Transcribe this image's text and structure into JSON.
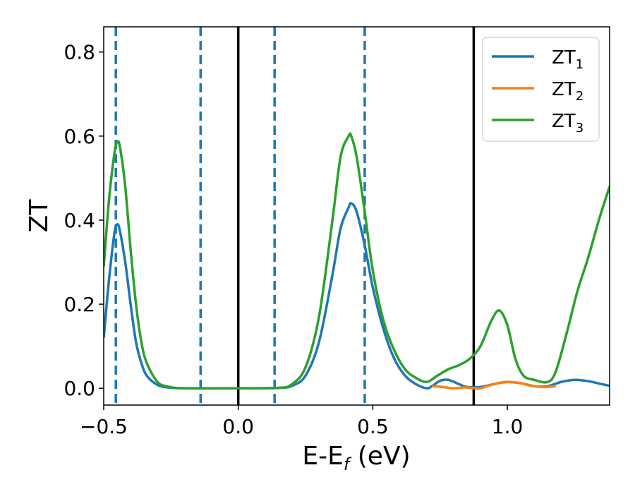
{
  "chart_data": {
    "type": "line",
    "xlabel": "E-E",
    "xlabel_sub": "f",
    "xlabel_unit": " (eV)",
    "ylabel": "ZT",
    "xlim": [
      -0.5,
      1.38
    ],
    "ylim": [
      -0.04,
      0.86
    ],
    "xticks": [
      -0.5,
      0.0,
      0.5,
      1.0
    ],
    "xtick_labels": [
      "−0.5",
      "0.0",
      "0.5",
      "1.0"
    ],
    "yticks": [
      0.0,
      0.2,
      0.4,
      0.6,
      0.8
    ],
    "ytick_labels": [
      "0.0",
      "0.2",
      "0.4",
      "0.6",
      "0.8"
    ],
    "grid": false,
    "legend_position": "top-right",
    "vlines_dashed": [
      -0.455,
      -0.14,
      0.135,
      0.47
    ],
    "vlines_solid": [
      0.0,
      0.875
    ],
    "series": [
      {
        "name": "ZT",
        "name_sub": "1",
        "color": "#1f77b4",
        "points": [
          [
            -0.5,
            0.12
          ],
          [
            -0.48,
            0.26
          ],
          [
            -0.46,
            0.37
          ],
          [
            -0.45,
            0.39
          ],
          [
            -0.44,
            0.375
          ],
          [
            -0.42,
            0.3
          ],
          [
            -0.4,
            0.2
          ],
          [
            -0.38,
            0.11
          ],
          [
            -0.36,
            0.06
          ],
          [
            -0.34,
            0.03
          ],
          [
            -0.3,
            0.008
          ],
          [
            -0.26,
            0.002
          ],
          [
            -0.2,
            0.0
          ],
          [
            0.0,
            0.0
          ],
          [
            0.15,
            0.001
          ],
          [
            0.2,
            0.006
          ],
          [
            0.25,
            0.03
          ],
          [
            0.3,
            0.11
          ],
          [
            0.35,
            0.27
          ],
          [
            0.38,
            0.38
          ],
          [
            0.41,
            0.43
          ],
          [
            0.42,
            0.44
          ],
          [
            0.44,
            0.42
          ],
          [
            0.47,
            0.34
          ],
          [
            0.5,
            0.24
          ],
          [
            0.54,
            0.14
          ],
          [
            0.58,
            0.07
          ],
          [
            0.62,
            0.03
          ],
          [
            0.66,
            0.01
          ],
          [
            0.7,
            0.0
          ],
          [
            0.72,
            0.005
          ],
          [
            0.75,
            0.018
          ],
          [
            0.78,
            0.02
          ],
          [
            0.82,
            0.01
          ],
          [
            0.85,
            0.003
          ],
          [
            0.9,
            0.003
          ],
          [
            0.95,
            0.01
          ],
          [
            1.0,
            0.015
          ],
          [
            1.05,
            0.012
          ],
          [
            1.1,
            0.005
          ],
          [
            1.15,
            0.005
          ],
          [
            1.2,
            0.015
          ],
          [
            1.25,
            0.02
          ],
          [
            1.3,
            0.017
          ],
          [
            1.35,
            0.01
          ],
          [
            1.38,
            0.006
          ]
        ]
      },
      {
        "name": "ZT",
        "name_sub": "2",
        "color": "#ff7f0e",
        "points": [
          [
            0.72,
            0.005
          ],
          [
            0.76,
            0.003
          ],
          [
            0.8,
            0.0
          ],
          [
            0.84,
            0.002
          ],
          [
            0.88,
            0.0
          ],
          [
            0.9,
            0.0
          ],
          [
            0.95,
            0.01
          ],
          [
            1.0,
            0.015
          ],
          [
            1.05,
            0.012
          ],
          [
            1.1,
            0.005
          ],
          [
            1.14,
            0.003
          ],
          [
            1.18,
            0.005
          ]
        ]
      },
      {
        "name": "ZT",
        "name_sub": "3",
        "color": "#2ca02c",
        "points": [
          [
            -0.5,
            0.29
          ],
          [
            -0.48,
            0.45
          ],
          [
            -0.46,
            0.56
          ],
          [
            -0.45,
            0.585
          ],
          [
            -0.44,
            0.575
          ],
          [
            -0.42,
            0.48
          ],
          [
            -0.4,
            0.33
          ],
          [
            -0.38,
            0.2
          ],
          [
            -0.36,
            0.11
          ],
          [
            -0.34,
            0.06
          ],
          [
            -0.3,
            0.015
          ],
          [
            -0.26,
            0.004
          ],
          [
            -0.2,
            0.0
          ],
          [
            0.0,
            0.0
          ],
          [
            0.15,
            0.001
          ],
          [
            0.2,
            0.01
          ],
          [
            0.25,
            0.05
          ],
          [
            0.3,
            0.17
          ],
          [
            0.35,
            0.4
          ],
          [
            0.38,
            0.55
          ],
          [
            0.41,
            0.6
          ],
          [
            0.42,
            0.6
          ],
          [
            0.44,
            0.55
          ],
          [
            0.47,
            0.42
          ],
          [
            0.5,
            0.28
          ],
          [
            0.54,
            0.16
          ],
          [
            0.58,
            0.09
          ],
          [
            0.62,
            0.045
          ],
          [
            0.66,
            0.025
          ],
          [
            0.7,
            0.015
          ],
          [
            0.74,
            0.03
          ],
          [
            0.78,
            0.045
          ],
          [
            0.82,
            0.055
          ],
          [
            0.86,
            0.07
          ],
          [
            0.9,
            0.1
          ],
          [
            0.94,
            0.16
          ],
          [
            0.97,
            0.185
          ],
          [
            1.0,
            0.15
          ],
          [
            1.03,
            0.07
          ],
          [
            1.06,
            0.03
          ],
          [
            1.1,
            0.02
          ],
          [
            1.15,
            0.015
          ],
          [
            1.18,
            0.04
          ],
          [
            1.22,
            0.13
          ],
          [
            1.26,
            0.23
          ],
          [
            1.3,
            0.31
          ],
          [
            1.34,
            0.4
          ],
          [
            1.38,
            0.48
          ]
        ]
      }
    ]
  }
}
